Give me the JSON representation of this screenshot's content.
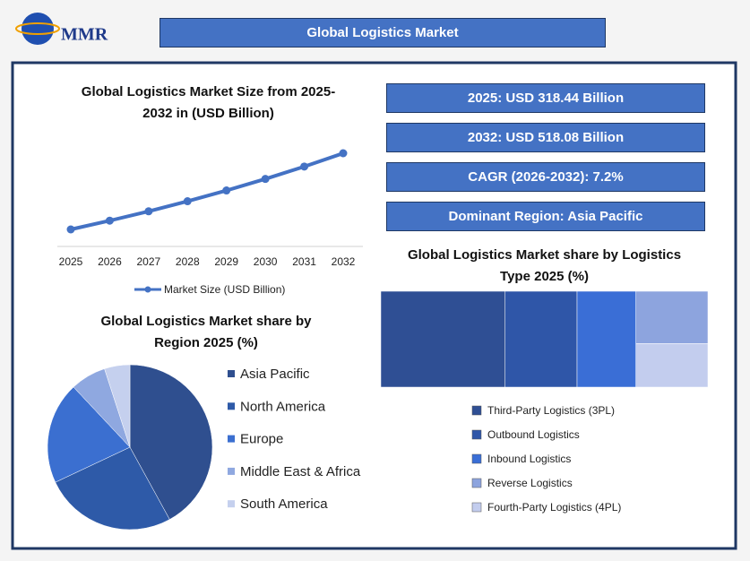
{
  "header": {
    "logo": "MMR",
    "title": "Global Logistics Market"
  },
  "stats": [
    "2025: USD 318.44 Billion",
    "2032: USD 518.08 Billion",
    "CAGR (2026-2032): 7.2%",
    "Dominant Region: Asia Pacific"
  ],
  "chart_data": [
    {
      "type": "line",
      "title": "Global Logistics Market Size from 2025-2032 in (USD Billion)",
      "categories": [
        "2025",
        "2026",
        "2027",
        "2028",
        "2029",
        "2030",
        "2031",
        "2032"
      ],
      "series": [
        {
          "name": "Market Size (USD Billion)",
          "color": "#4472c4",
          "values": [
            318.44,
            341.4,
            365.9,
            392.3,
            420.5,
            450.8,
            483.2,
            518.08
          ]
        }
      ]
    },
    {
      "type": "pie",
      "title": "Global Logistics Market share by Region 2025 (%)",
      "categories": [
        "Asia Pacific",
        "North America",
        "Europe",
        "Middle East & Africa",
        "South America"
      ],
      "values": [
        42,
        26,
        20,
        7,
        5
      ],
      "colors": [
        "#2f4f8f",
        "#2e5aa8",
        "#3b6fd0",
        "#8fa8e0",
        "#c5d0ee"
      ]
    },
    {
      "type": "treemap",
      "title": "Global Logistics Market share by Logistics Type 2025 (%)",
      "categories": [
        "Third-Party Logistics (3PL)",
        "Outbound Logistics",
        "Inbound Logistics",
        "Reverse Logistics",
        "Fourth-Party Logistics (4PL)"
      ],
      "values": [
        38,
        22,
        18,
        12,
        10
      ],
      "colors": [
        "#2f4f94",
        "#2f56a8",
        "#3a6ed6",
        "#8da4de",
        "#c3cdee"
      ]
    }
  ]
}
